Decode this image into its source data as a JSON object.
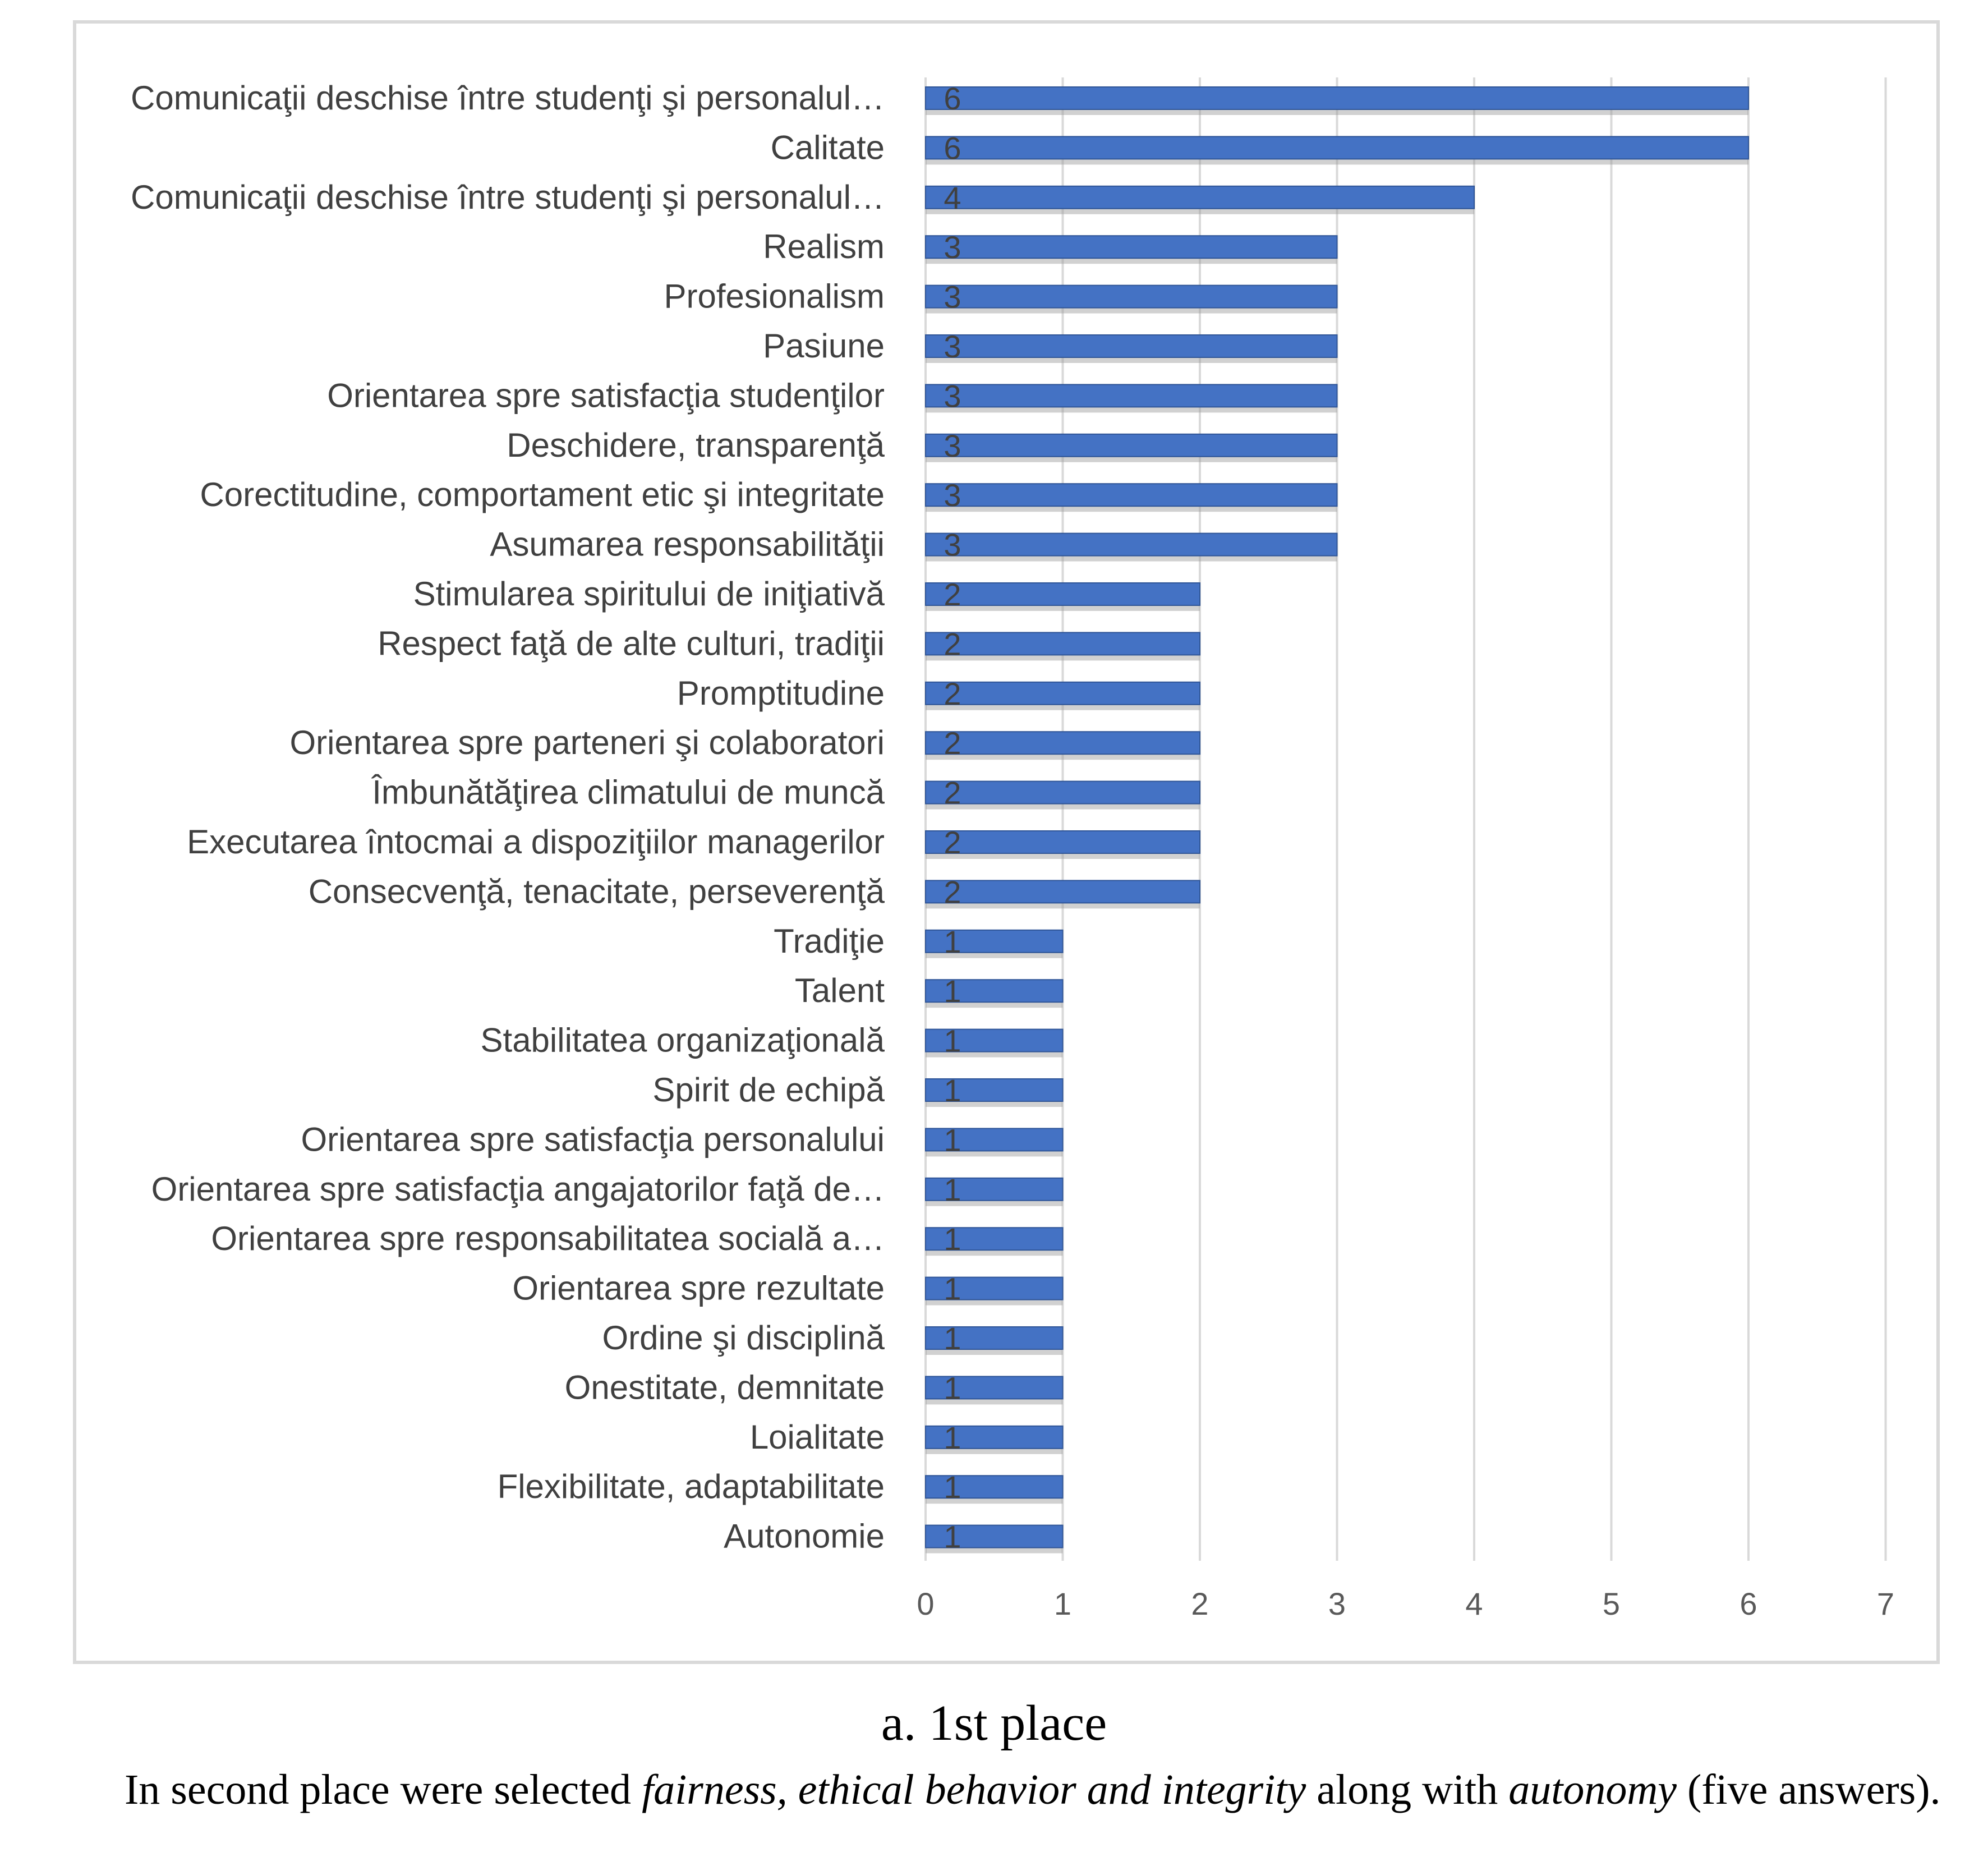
{
  "chart_data": {
    "type": "bar",
    "orientation": "horizontal",
    "categories": [
      "Comunicaţii deschise între studenţi şi personalul…",
      "Calitate",
      "Comunicaţii deschise între studenţi şi personalul…",
      "Realism",
      "Profesionalism",
      "Pasiune",
      "Orientarea spre satisfacţia studenţilor",
      "Deschidere, transparenţă",
      "Corectitudine, comportament etic şi integritate",
      "Asumarea responsabilităţii",
      "Stimularea spiritului de iniţiativă",
      "Respect faţă de alte culturi, tradiţii",
      "Promptitudine",
      "Orientarea spre parteneri şi colaboratori",
      "Îmbunătăţirea climatului de muncă",
      "Executarea întocmai a dispoziţiilor managerilor",
      "Consecvenţă, tenacitate, perseverenţă",
      "Tradiţie",
      "Talent",
      "Stabilitatea organizaţională",
      "Spirit de echipă",
      "Orientarea spre satisfacţia personalului",
      "Orientarea spre satisfacţia angajatorilor faţă de…",
      "Orientarea spre responsabilitatea socială a…",
      "Orientarea spre rezultate",
      "Ordine şi disciplină",
      "Onestitate, demnitate",
      "Loialitate",
      "Flexibilitate, adaptabilitate",
      "Autonomie"
    ],
    "values": [
      6,
      6,
      4,
      3,
      3,
      3,
      3,
      3,
      3,
      3,
      2,
      2,
      2,
      2,
      2,
      2,
      2,
      1,
      1,
      1,
      1,
      1,
      1,
      1,
      1,
      1,
      1,
      1,
      1,
      1
    ],
    "x_ticks": [
      "0",
      "1",
      "2",
      "3",
      "4",
      "5",
      "6",
      "7"
    ],
    "xlim": [
      0,
      7
    ],
    "grid": true,
    "title": "",
    "xlabel": "",
    "ylabel": "",
    "bar_color": "#4472c4",
    "bar_edge_color": "#2f5597",
    "grid_color": "#d9d9d9"
  },
  "caption": "a. 1st place",
  "body": {
    "part1": "In second place were selected ",
    "em1": "fairness, ethical behavior and integrity",
    "part2": " along with ",
    "em2": "autonomy",
    "part3": " (five answers)."
  }
}
